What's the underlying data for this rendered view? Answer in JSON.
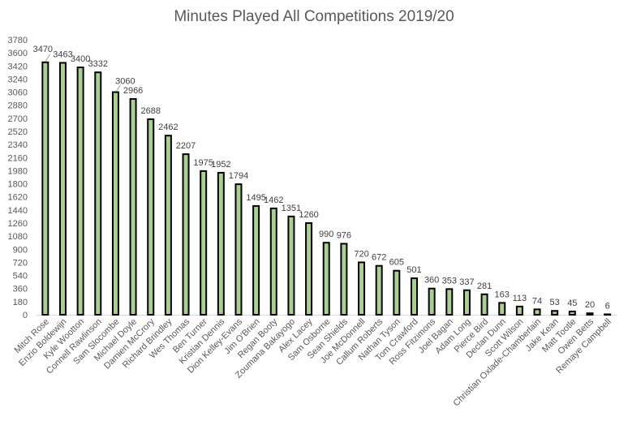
{
  "chart_data": {
    "type": "bar",
    "title": "Minutes Played All Competitions 2019/20",
    "xlabel": "",
    "ylabel": "",
    "ylim": [
      0,
      3780
    ],
    "yticks": [
      0,
      180,
      360,
      540,
      720,
      900,
      1080,
      1260,
      1440,
      1620,
      1800,
      1980,
      2160,
      2340,
      2520,
      2700,
      2880,
      3060,
      3240,
      3420,
      3600,
      3780
    ],
    "grid": false,
    "legend": "none",
    "colors": {
      "bar_fill": "#a9d18e",
      "bar_stroke": "#000000",
      "label_text": "#404040",
      "axis_text": "#595959"
    },
    "categories": [
      "Mitch Rose",
      "Enzio Boldewijn",
      "Kyle Wootton",
      "Connell Rawlinson",
      "Sam Slocombe",
      "Michael Doyle",
      "Damien McCrory",
      "Richard Brindley",
      "Wes Thomas",
      "Ben Turner",
      "Kristian Dennis",
      "Dion Kelley-Evans",
      "Jim O'Brien",
      "Regan Booty",
      "Zoumana Bakayogo",
      "Alex Lacey",
      "Sam Osborne",
      "Sean Shields",
      "Joe McDonnell",
      "Callum Roberts",
      "Nathan Tyson",
      "Tom Crawford",
      "Ross Fitzimons",
      "Joel Bagan",
      "Adam Long",
      "Pierce Bird",
      "Declan Dunn",
      "Scott Wilson",
      "Christian Oxlade-Chamberlain",
      "Jake Kean",
      "Matt Tootle",
      "Owen Betts",
      "Remaye Campbell"
    ],
    "values": [
      3470,
      3463,
      3400,
      3332,
      3060,
      2966,
      2688,
      2462,
      2207,
      1975,
      1952,
      1794,
      1495,
      1462,
      1351,
      1260,
      990,
      976,
      720,
      672,
      605,
      501,
      360,
      353,
      337,
      281,
      163,
      113,
      74,
      53,
      45,
      20,
      6
    ]
  }
}
